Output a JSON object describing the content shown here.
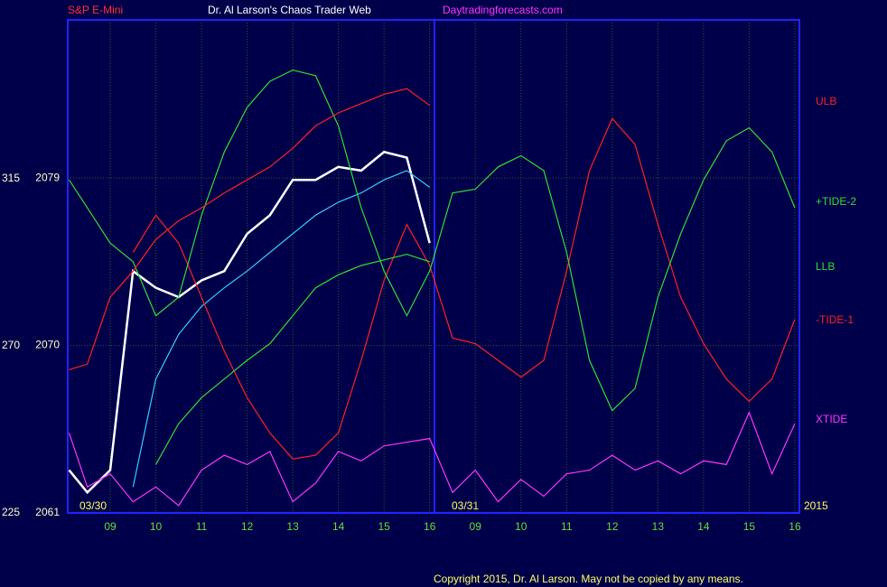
{
  "chart_data": {
    "type": "line",
    "title": "Dr. Al Larson's Chaos Trader Web",
    "instrument": "S&P E-Mini",
    "site": "Daytradingforecasts.com",
    "date_labels": [
      "03/30",
      "03/31",
      "2015"
    ],
    "copyright": "Copyright 2015, Dr. Al Larson. May not be copied by any means.",
    "x": [
      8.1,
      8.5,
      9,
      9.5,
      10,
      10.5,
      11,
      11.5,
      12,
      12.5,
      13,
      13.5,
      14,
      14.5,
      15,
      15.5,
      16,
      16.5,
      17,
      17.5,
      18,
      18.5,
      19,
      19.5,
      20,
      20.5,
      21,
      21.5,
      22,
      22.5,
      23,
      23.5,
      24
    ],
    "xlim": [
      8.07,
      24.1
    ],
    "xticks": [
      {
        "value": 9,
        "label": "09"
      },
      10,
      11,
      12,
      13,
      14,
      15,
      16,
      {
        "value": 17,
        "label": "09"
      },
      {
        "value": 18,
        "label": "10"
      },
      {
        "value": 19,
        "label": "11"
      },
      {
        "value": 20,
        "label": "12"
      },
      {
        "value": 21,
        "label": "13"
      },
      {
        "value": 22,
        "label": "14"
      },
      {
        "value": 23,
        "label": "15"
      },
      {
        "value": 24,
        "label": "16"
      }
    ],
    "ylim": [
      2061,
      2087.5
    ],
    "yticks": [
      2061,
      2070,
      2079
    ],
    "y2lim": [
      225,
      357.8
    ],
    "y2ticks": [
      225,
      270,
      315
    ],
    "grid": true,
    "series": [
      {
        "color": "#ffffff",
        "values": [
          2063.3,
          2062.1,
          2063.3,
          2074.0,
          2073.1,
          2072.6,
          2073.5,
          2074.0,
          2076.0,
          2077.0,
          2078.9,
          2078.9,
          2079.6,
          2079.4,
          2080.4,
          2080.1,
          2075.5,
          null,
          null,
          null,
          null,
          null,
          null,
          null,
          null,
          null,
          null,
          null,
          null,
          null,
          null,
          null,
          null
        ]
      },
      {
        "color": "#33ccff",
        "values": [
          null,
          null,
          null,
          2062.4,
          2068.2,
          2070.6,
          2072.1,
          2073.1,
          2074.0,
          2075.0,
          2076.0,
          2077.0,
          2077.7,
          2078.2,
          2078.9,
          2079.4,
          2078.5,
          null,
          null,
          null,
          null,
          null,
          null,
          null,
          null,
          null,
          null,
          null,
          null,
          null,
          null,
          null,
          null
        ]
      },
      {
        "name": "ULB",
        "color": "#ff2020",
        "values": [
          null,
          null,
          null,
          2075.0,
          2077.0,
          2075.5,
          2072.6,
          2069.7,
          2067.2,
          2065.3,
          2063.9,
          2064.1,
          2065.3,
          2069.2,
          2073.5,
          2076.5,
          2074.3,
          2070.4,
          2070.1,
          2069.2,
          2068.3,
          2069.2,
          2074.0,
          2079.4,
          2082.2,
          2080.8,
          2076.5,
          2072.6,
          2070.1,
          2068.2,
          2067.0,
          2068.2,
          2071.4
        ]
      },
      {
        "name": "+TIDE-2",
        "color": "#33dd33",
        "values": [
          2078.9,
          2077.4,
          2075.5,
          2074.5,
          2071.6,
          2072.6,
          2077.0,
          2080.4,
          2082.8,
          2084.2,
          2084.8,
          2084.5,
          2081.8,
          2077.4,
          2074.0,
          2071.6,
          2074.0,
          2078.2,
          2078.4,
          2079.6,
          2080.2,
          2079.4,
          2075.0,
          2069.2,
          2066.5,
          2067.7,
          2072.6,
          2076.0,
          2078.9,
          2081.0,
          2081.7,
          2080.4,
          2077.4
        ]
      },
      {
        "name": "LLB",
        "color": "#33dd33",
        "values": [
          null,
          null,
          null,
          null,
          2063.6,
          2065.8,
          2067.2,
          2068.2,
          2069.2,
          2070.1,
          2071.6,
          2073.1,
          2073.8,
          2074.3,
          2074.6,
          2074.9,
          2074.5,
          null,
          null,
          null,
          null,
          null,
          null,
          null,
          null,
          null,
          null,
          null,
          null,
          null,
          null,
          null,
          null
        ]
      },
      {
        "name": "-TIDE-1",
        "color": "#ff2020",
        "values": [
          2068.7,
          2069.0,
          2072.6,
          2074.0,
          2075.7,
          2076.7,
          2077.4,
          2078.2,
          2078.9,
          2079.6,
          2080.6,
          2081.8,
          2082.5,
          2083.0,
          2083.5,
          2083.8,
          2082.9,
          null,
          null,
          null,
          null,
          null,
          null,
          null,
          null,
          null,
          null,
          null,
          null,
          null,
          null,
          null,
          null
        ]
      },
      {
        "name": "XTIDE",
        "color": "#ff33ff",
        "values": [
          2065.3,
          2062.4,
          2063.1,
          2061.6,
          2062.4,
          2061.4,
          2063.3,
          2064.1,
          2063.6,
          2064.3,
          2061.6,
          2062.6,
          2064.3,
          2063.8,
          2064.6,
          2064.8,
          2065.0,
          2062.1,
          2063.3,
          2061.6,
          2062.8,
          2061.9,
          2063.1,
          2063.3,
          2064.1,
          2063.3,
          2063.8,
          2063.1,
          2063.8,
          2063.6,
          2066.4,
          2063.1,
          2065.8
        ]
      }
    ]
  }
}
